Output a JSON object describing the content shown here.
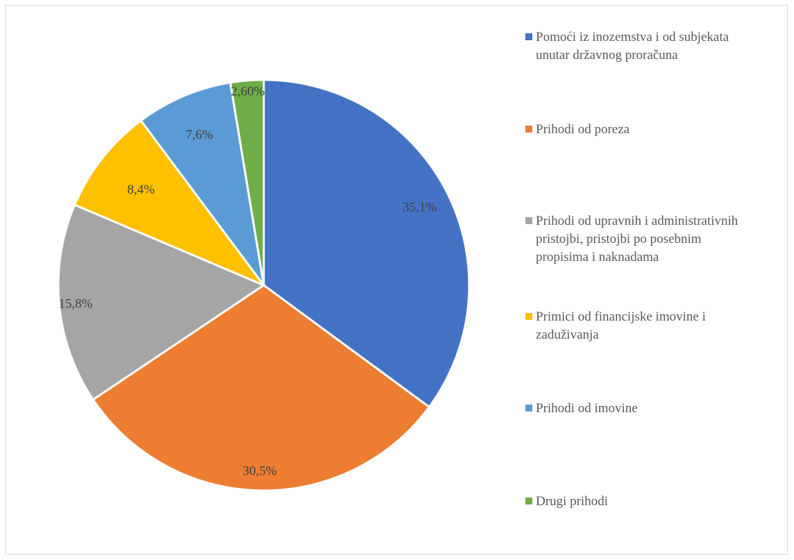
{
  "chart_data": {
    "type": "pie",
    "categories": [
      "Pomoći iz inozemstva i od subjekata unutar državnog proračuna",
      "Prihodi od poreza",
      "Prihodi od upravnih i administrativnih pristojbi, pristojbi po posebnim propisima i naknadama",
      "Primici od financijske imovine i zaduživanja",
      "Prihodi od imovine",
      "Drugi prihodi"
    ],
    "values": [
      35.1,
      30.5,
      15.8,
      8.4,
      7.6,
      2.6
    ],
    "data_labels": [
      "35,1%",
      "30,5%",
      "15,8%",
      "8,4%",
      "7,6%",
      "2,60%"
    ],
    "legend_lines": [
      [
        "Pomoći iz inozemstva i od subjekata",
        "unutar državnog proračuna"
      ],
      [
        "Prihodi od poreza"
      ],
      [
        "Prihodi od upravnih i administrativnih",
        "pristojbi, pristojbi po posebnim",
        "propisima i naknadama"
      ],
      [
        "Primici od financijske imovine i",
        "zaduživanja"
      ],
      [
        "Prihodi od imovine"
      ],
      [
        "Drugi prihodi"
      ]
    ],
    "colors": [
      "#4472C4",
      "#ED7D31",
      "#A5A5A5",
      "#FFC000",
      "#5B9BD5",
      "#70AD47"
    ],
    "legend_position": "right"
  }
}
